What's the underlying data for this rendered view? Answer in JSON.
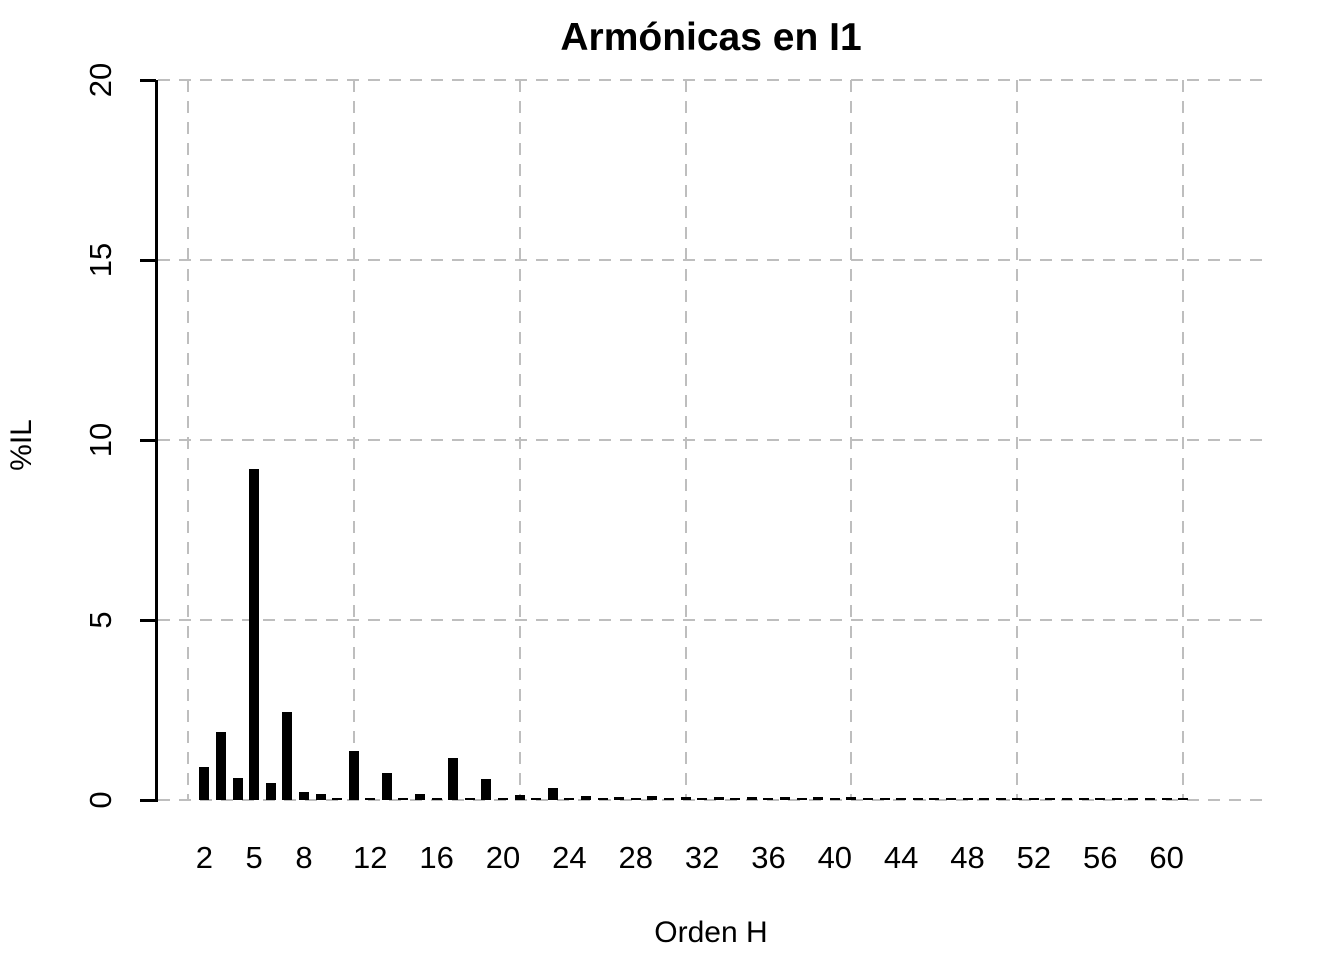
{
  "chart_data": {
    "type": "bar",
    "title": "Armónicas en I1",
    "xlabel": "Orden H",
    "ylabel": "%IL",
    "x": [
      2,
      3,
      4,
      5,
      6,
      7,
      8,
      9,
      10,
      11,
      12,
      13,
      14,
      15,
      16,
      17,
      18,
      19,
      20,
      21,
      22,
      23,
      24,
      25,
      26,
      27,
      28,
      29,
      30,
      31,
      32,
      33,
      34,
      35,
      36,
      37,
      38,
      39,
      40,
      41,
      42,
      43,
      44,
      45,
      46,
      47,
      48,
      49,
      50,
      51,
      52,
      53,
      54,
      55,
      56,
      57,
      58,
      59,
      60,
      61
    ],
    "values": [
      0.92,
      1.9,
      0.6,
      9.2,
      0.48,
      2.45,
      0.22,
      0.18,
      0.05,
      1.37,
      0.05,
      0.76,
      0.04,
      0.16,
      0.05,
      1.18,
      0.03,
      0.59,
      0.03,
      0.13,
      0.04,
      0.33,
      0.05,
      0.1,
      0.04,
      0.09,
      0.03,
      0.12,
      0.03,
      0.09,
      0.03,
      0.07,
      0.02,
      0.09,
      0.02,
      0.08,
      0.02,
      0.07,
      0.02,
      0.07,
      0.02,
      0.06,
      0.02,
      0.05,
      0.02,
      0.05,
      0.02,
      0.05,
      0.02,
      0.05,
      0.02,
      0.04,
      0.02,
      0.04,
      0.02,
      0.04,
      0.02,
      0.03,
      0.02,
      0.03
    ],
    "ylim": [
      0,
      20
    ],
    "yticks": [
      0,
      5,
      10,
      15,
      20
    ],
    "xtick_labels": [
      2,
      5,
      8,
      12,
      16,
      20,
      24,
      28,
      32,
      36,
      40,
      44,
      48,
      52,
      56,
      60
    ],
    "grid": "on",
    "grid_vertical_at": [
      1,
      11,
      21,
      31,
      41,
      51,
      61
    ],
    "bar_color": "#000000",
    "grid_color": "#BEBEBE",
    "axis_color": "#000000",
    "background_color": "#FFFFFF",
    "legend": "none"
  }
}
